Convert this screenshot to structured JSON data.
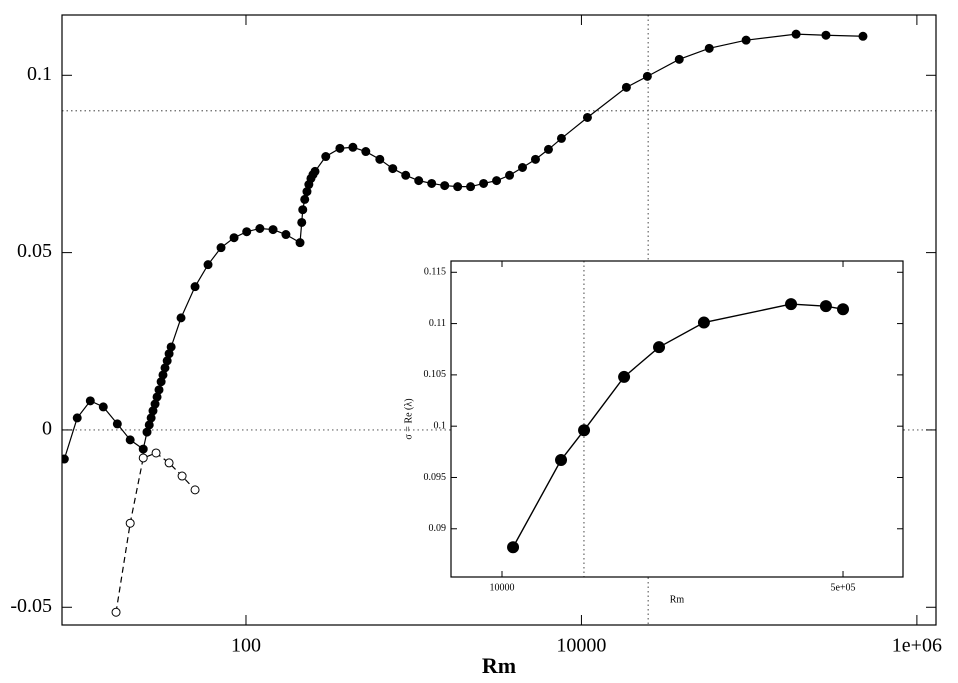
{
  "chart_data": [
    {
      "type": "line",
      "xlabel": "Rm",
      "xscale": "log",
      "xlim": [
        8,
        1300000
      ],
      "ylim": [
        -0.055,
        0.117
      ],
      "xticks": [
        100,
        10000,
        {
          "value": 1000000,
          "label": "1e+06"
        }
      ],
      "yticks": [
        -0.05,
        0,
        0.05,
        0.1
      ],
      "hlines": [
        0.09,
        0
      ],
      "vlines": [
        25000
      ],
      "series": [
        {
          "color": "#000000",
          "marker": "filled",
          "dash": "solid",
          "x": [
            8.26,
            9.86,
            11.8,
            14.1,
            17.1,
            20.4,
            24.4,
            25.7,
            26.5,
            27.2,
            27.9,
            28.7,
            29.5,
            30.3,
            31.2,
            32.0,
            32.9,
            33.9,
            34.8,
            35.8,
            41.0,
            49.7,
            59.4,
            71.0,
            84.9,
            101,
            121,
            145,
            173,
            210,
            215,
            218,
            224,
            231,
            237,
            244,
            251,
            258,
            299,
            363,
            434,
            518,
            628,
            750,
            896,
            1071,
            1280,
            1530,
            1828,
            2183,
            2610,
            3119,
            3727,
            4453,
            5321,
            6360,
            7600,
            10860,
            18540,
            24720,
            38300,
            57800,
            95900,
            190500,
            287000,
            477000
          ],
          "values": [
            -0.0082,
            0.0034,
            0.0082,
            0.0065,
            0.0017,
            -0.0028,
            -0.0054,
            -0.0006,
            0.0014,
            0.0034,
            0.0054,
            0.0073,
            0.0093,
            0.0113,
            0.0136,
            0.0155,
            0.0175,
            0.0195,
            0.0215,
            0.0234,
            0.0316,
            0.0404,
            0.0466,
            0.0514,
            0.0542,
            0.0559,
            0.0568,
            0.0565,
            0.0551,
            0.0528,
            0.0585,
            0.0621,
            0.065,
            0.0672,
            0.0692,
            0.0709,
            0.072,
            0.0729,
            0.0771,
            0.0794,
            0.0797,
            0.0785,
            0.0763,
            0.0737,
            0.0718,
            0.0703,
            0.0695,
            0.0689,
            0.0686,
            0.0686,
            0.0695,
            0.0703,
            0.0718,
            0.074,
            0.0763,
            0.0791,
            0.0822,
            0.0881,
            0.0966,
            0.0997,
            0.1045,
            0.1076,
            0.1099,
            0.1116,
            0.1113,
            0.111
          ]
        },
        {
          "color": "#000000",
          "marker": "open",
          "dash": "dashed",
          "x": [
            16.8,
            20.4,
            24.4,
            29.1,
            34.8,
            41.6,
            49.7
          ],
          "values": [
            -0.0514,
            -0.0263,
            -0.0079,
            -0.0065,
            -0.0093,
            -0.013,
            -0.0169
          ]
        }
      ]
    },
    {
      "type": "line",
      "xlabel": "Rm",
      "ylabel": "σ = Re (λ)",
      "xscale": "log",
      "xlim": [
        5570,
        995000
      ],
      "ylim": [
        0.0853,
        0.1161
      ],
      "xticks": [
        10000,
        {
          "value": 500000,
          "label": "5e+05"
        }
      ],
      "yticks": [
        0.09,
        0.095,
        0.1,
        0.105,
        0.11,
        0.115
      ],
      "vlines": [
        25600
      ],
      "series": [
        {
          "color": "#000000",
          "marker": "filled",
          "dash": "solid",
          "x": [
            11350,
            19680,
            25630,
            40570,
            60570,
            101400,
            275400,
            411000,
            500000
          ],
          "values": [
            0.0882,
            0.0967,
            0.0996,
            0.1048,
            0.1077,
            0.1101,
            0.1119,
            0.1117,
            0.1114
          ]
        }
      ]
    }
  ]
}
